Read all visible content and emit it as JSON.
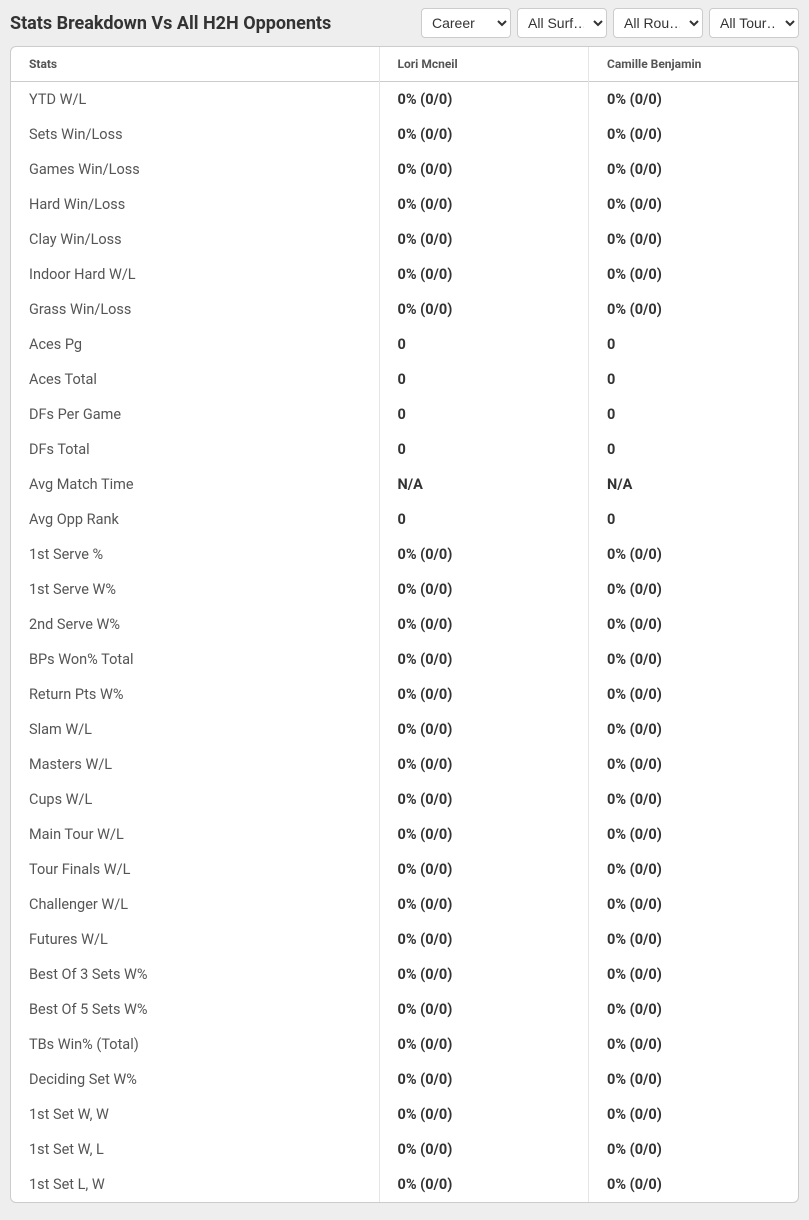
{
  "header": {
    "title": "Stats Breakdown Vs All H2H Opponents"
  },
  "filters": {
    "timeframe": {
      "selected": "Career",
      "options": [
        "Career"
      ]
    },
    "surface": {
      "selected": "All Surf…",
      "options": [
        "All Surf…"
      ]
    },
    "round": {
      "selected": "All Rou…",
      "options": [
        "All Rou…"
      ]
    },
    "tournament": {
      "selected": "All Tour…",
      "options": [
        "All Tour…"
      ]
    }
  },
  "table": {
    "columns": {
      "stats": "Stats",
      "player1": "Lori Mcneil",
      "player2": "Camille Benjamin"
    },
    "rows": [
      {
        "label": "YTD W/L",
        "p1": "0% (0/0)",
        "p2": "0% (0/0)"
      },
      {
        "label": "Sets Win/Loss",
        "p1": "0% (0/0)",
        "p2": "0% (0/0)"
      },
      {
        "label": "Games Win/Loss",
        "p1": "0% (0/0)",
        "p2": "0% (0/0)"
      },
      {
        "label": "Hard Win/Loss",
        "p1": "0% (0/0)",
        "p2": "0% (0/0)"
      },
      {
        "label": "Clay Win/Loss",
        "p1": "0% (0/0)",
        "p2": "0% (0/0)"
      },
      {
        "label": "Indoor Hard W/L",
        "p1": "0% (0/0)",
        "p2": "0% (0/0)"
      },
      {
        "label": "Grass Win/Loss",
        "p1": "0% (0/0)",
        "p2": "0% (0/0)"
      },
      {
        "label": "Aces Pg",
        "p1": "0",
        "p2": "0"
      },
      {
        "label": "Aces Total",
        "p1": "0",
        "p2": "0"
      },
      {
        "label": "DFs Per Game",
        "p1": "0",
        "p2": "0"
      },
      {
        "label": "DFs Total",
        "p1": "0",
        "p2": "0"
      },
      {
        "label": "Avg Match Time",
        "p1": "N/A",
        "p2": "N/A"
      },
      {
        "label": "Avg Opp Rank",
        "p1": "0",
        "p2": "0"
      },
      {
        "label": "1st Serve %",
        "p1": "0% (0/0)",
        "p2": "0% (0/0)"
      },
      {
        "label": "1st Serve W%",
        "p1": "0% (0/0)",
        "p2": "0% (0/0)"
      },
      {
        "label": "2nd Serve W%",
        "p1": "0% (0/0)",
        "p2": "0% (0/0)"
      },
      {
        "label": "BPs Won% Total",
        "p1": "0% (0/0)",
        "p2": "0% (0/0)"
      },
      {
        "label": "Return Pts W%",
        "p1": "0% (0/0)",
        "p2": "0% (0/0)"
      },
      {
        "label": "Slam W/L",
        "p1": "0% (0/0)",
        "p2": "0% (0/0)"
      },
      {
        "label": "Masters W/L",
        "p1": "0% (0/0)",
        "p2": "0% (0/0)"
      },
      {
        "label": "Cups W/L",
        "p1": "0% (0/0)",
        "p2": "0% (0/0)"
      },
      {
        "label": "Main Tour W/L",
        "p1": "0% (0/0)",
        "p2": "0% (0/0)"
      },
      {
        "label": "Tour Finals W/L",
        "p1": "0% (0/0)",
        "p2": "0% (0/0)"
      },
      {
        "label": "Challenger W/L",
        "p1": "0% (0/0)",
        "p2": "0% (0/0)"
      },
      {
        "label": "Futures W/L",
        "p1": "0% (0/0)",
        "p2": "0% (0/0)"
      },
      {
        "label": "Best Of 3 Sets W%",
        "p1": "0% (0/0)",
        "p2": "0% (0/0)"
      },
      {
        "label": "Best Of 5 Sets W%",
        "p1": "0% (0/0)",
        "p2": "0% (0/0)"
      },
      {
        "label": "TBs Win% (Total)",
        "p1": "0% (0/0)",
        "p2": "0% (0/0)"
      },
      {
        "label": "Deciding Set W%",
        "p1": "0% (0/0)",
        "p2": "0% (0/0)"
      },
      {
        "label": "1st Set W, W",
        "p1": "0% (0/0)",
        "p2": "0% (0/0)"
      },
      {
        "label": "1st Set W, L",
        "p1": "0% (0/0)",
        "p2": "0% (0/0)"
      },
      {
        "label": "1st Set L, W",
        "p1": "0% (0/0)",
        "p2": "0% (0/0)"
      }
    ]
  }
}
